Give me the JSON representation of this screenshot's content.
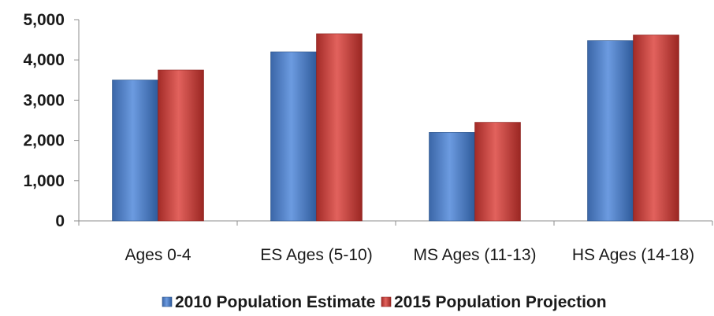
{
  "chart_data": {
    "type": "bar",
    "categories": [
      "Ages 0-4",
      "ES Ages (5-10)",
      "MS Ages (11-13)",
      "HS Ages (14-18)"
    ],
    "series": [
      {
        "name": "2010 Population Estimate",
        "values": [
          3500,
          4200,
          2200,
          4480
        ],
        "color": "#4f81bd"
      },
      {
        "name": "2015 Population Projection",
        "values": [
          3750,
          4650,
          2450,
          4620
        ],
        "color": "#c0504d"
      }
    ],
    "y_ticks": [
      "0",
      "1,000",
      "2,000",
      "3,000",
      "4,000",
      "5,000"
    ],
    "ylim": [
      0,
      5000
    ],
    "grid": false,
    "legend_position": "bottom",
    "title": "",
    "xlabel": "",
    "ylabel": ""
  }
}
